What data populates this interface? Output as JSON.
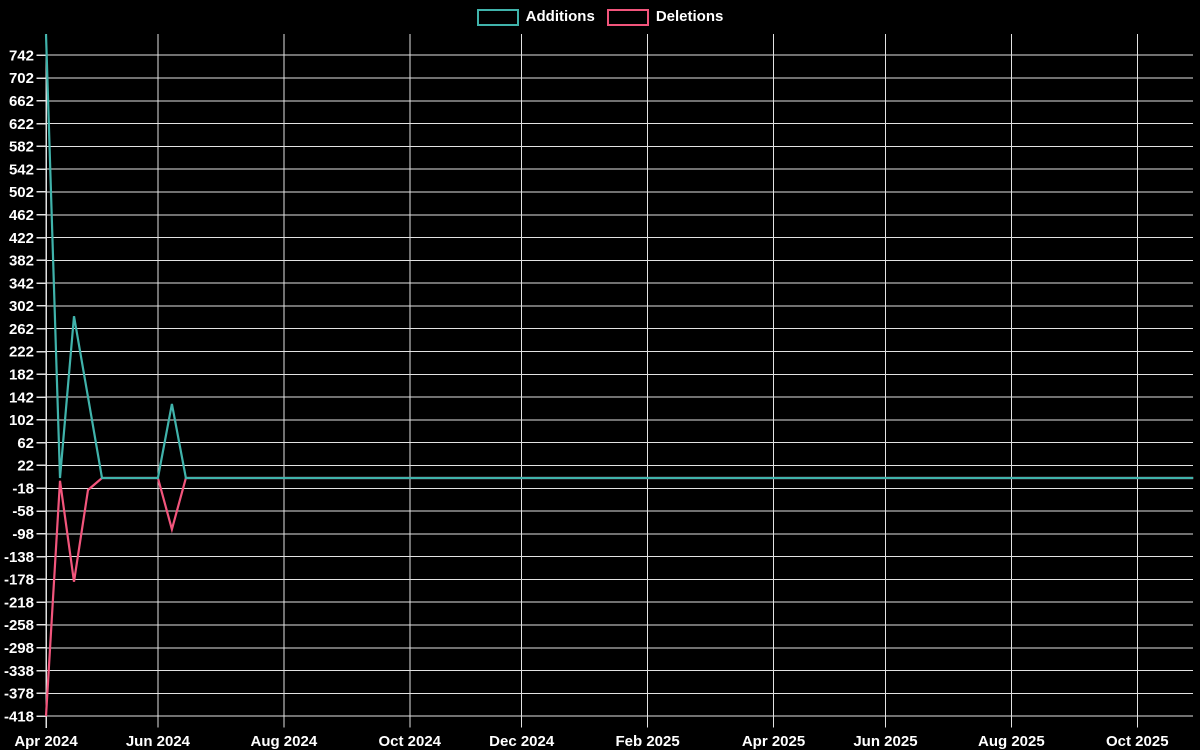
{
  "colors": {
    "background": "#000000",
    "grid": "#e2e2e2",
    "text": "#ffffff",
    "additions": "#40b3ab",
    "deletions": "#f2557c"
  },
  "legend": [
    {
      "label": "Additions",
      "color": "#40b3ab"
    },
    {
      "label": "Deletions",
      "color": "#f2557c"
    }
  ],
  "chart_data": {
    "type": "line",
    "title": "",
    "xlabel": "",
    "ylabel": "",
    "x_unit": "week",
    "x_start_date": "2024-04-01",
    "x_end_date": "2025-10-27",
    "weeks_total": 82,
    "ylim": [
      -418,
      779
    ],
    "grid": true,
    "legend_position": "top-center",
    "y_ticks": [
      742,
      702,
      662,
      622,
      582,
      542,
      502,
      462,
      422,
      382,
      342,
      302,
      262,
      222,
      182,
      142,
      102,
      62,
      22,
      -18,
      -58,
      -98,
      -138,
      -178,
      -218,
      -258,
      -298,
      -338,
      -378,
      -418
    ],
    "x_ticks": [
      {
        "label": "Apr 2024",
        "week": 0
      },
      {
        "label": "Jun 2024",
        "week": 8
      },
      {
        "label": "Aug 2024",
        "week": 17
      },
      {
        "label": "Oct 2024",
        "week": 26
      },
      {
        "label": "Dec 2024",
        "week": 34
      },
      {
        "label": "Feb 2025",
        "week": 43
      },
      {
        "label": "Apr 2025",
        "week": 52
      },
      {
        "label": "Jun 2025",
        "week": 60
      },
      {
        "label": "Aug 2025",
        "week": 69
      },
      {
        "label": "Oct 2025",
        "week": 78
      }
    ],
    "series": [
      {
        "name": "Additions",
        "color": "#40b3ab",
        "points_note": "[week_index, value]; value is 0 for all weeks between listed points",
        "points": [
          [
            0,
            779
          ],
          [
            1,
            0
          ],
          [
            2,
            284
          ],
          [
            3,
            142
          ],
          [
            4,
            0
          ],
          [
            8,
            0
          ],
          [
            9,
            130
          ],
          [
            10,
            0
          ],
          [
            82,
            0
          ]
        ]
      },
      {
        "name": "Deletions",
        "color": "#f2557c",
        "points_note": "[week_index, value]; value is 0 for all weeks between listed points",
        "points": [
          [
            0,
            -418
          ],
          [
            1,
            -5
          ],
          [
            2,
            -182
          ],
          [
            3,
            -21
          ],
          [
            4,
            0
          ],
          [
            8,
            0
          ],
          [
            9,
            -90
          ],
          [
            10,
            0
          ],
          [
            82,
            0
          ]
        ]
      }
    ]
  }
}
